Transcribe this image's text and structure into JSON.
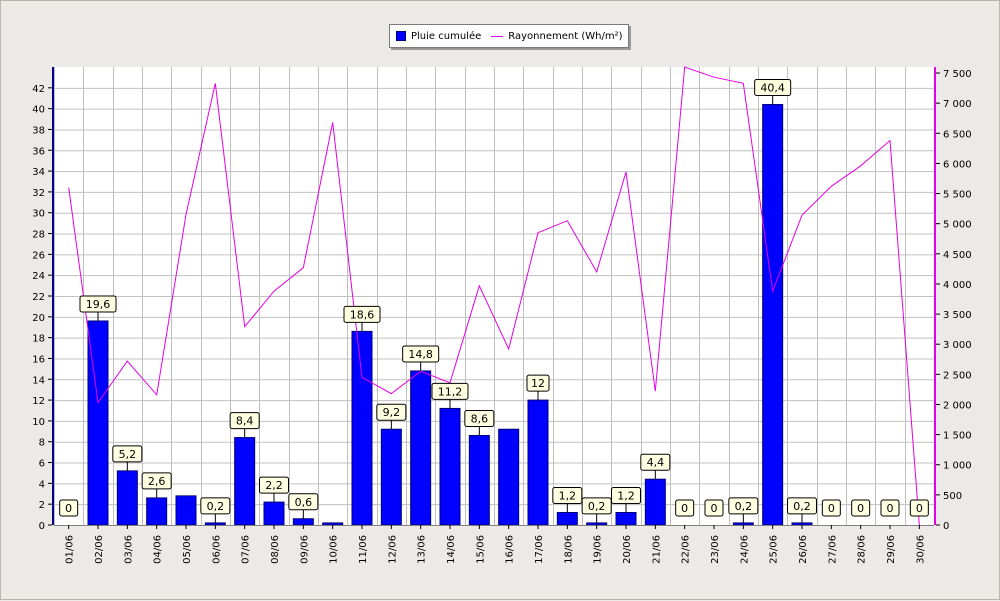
{
  "chart_data": {
    "type": "bar",
    "categories": [
      "01/06",
      "02/06",
      "03/06",
      "04/06",
      "05/06",
      "06/06",
      "07/06",
      "08/06",
      "09/06",
      "10/06",
      "11/06",
      "12/06",
      "13/06",
      "14/06",
      "15/06",
      "16/06",
      "17/06",
      "18/06",
      "19/06",
      "20/06",
      "21/06",
      "22/06",
      "23/06",
      "24/06",
      "25/06",
      "26/06",
      "27/06",
      "28/06",
      "29/06",
      "30/06"
    ],
    "series": [
      {
        "name": "Pluie cumulée",
        "type": "bar",
        "axis": "left",
        "color": "#0000ff",
        "values": [
          0,
          19.6,
          5.2,
          2.6,
          2.8,
          0.2,
          8.4,
          2.2,
          0.6,
          0.2,
          18.6,
          9.2,
          14.8,
          11.2,
          8.6,
          9.2,
          12,
          1.2,
          0.2,
          1.2,
          4.4,
          0,
          0,
          0.2,
          40.4,
          0.2,
          0,
          0,
          0,
          0
        ],
        "labels": [
          "0",
          "19,6",
          "5,2",
          "2,6",
          null,
          "0,2",
          "8,4",
          "2,2",
          "0,6",
          null,
          "18,6",
          "9,2",
          "14,8",
          "11,2",
          "8,6",
          null,
          "12",
          "1,2",
          "0,2",
          "1,2",
          "4,4",
          "0",
          "0",
          "0,2",
          "40,4",
          "0,2",
          "0",
          "0",
          "0",
          "0"
        ]
      },
      {
        "name": "Rayonnement (Wh/m²)",
        "type": "line",
        "axis": "right",
        "color": "#e600e6",
        "values": [
          5600,
          2030,
          2720,
          2160,
          5150,
          7330,
          3290,
          3880,
          4270,
          6680,
          2450,
          2180,
          2550,
          2360,
          3970,
          2920,
          4850,
          5050,
          4200,
          5860,
          2220,
          7600,
          7430,
          7330,
          3880,
          5140,
          5620,
          5960,
          6380,
          0
        ]
      }
    ],
    "yaxis_left": {
      "min": 0,
      "max": 44,
      "ticks": [
        0,
        2,
        4,
        6,
        8,
        10,
        12,
        14,
        16,
        18,
        20,
        22,
        24,
        26,
        28,
        30,
        32,
        34,
        36,
        38,
        40,
        42
      ]
    },
    "yaxis_right": {
      "min": 0,
      "max": 7600,
      "ticks": [
        0,
        500,
        1000,
        1500,
        2000,
        2500,
        3000,
        3500,
        4000,
        4500,
        5000,
        5500,
        6000,
        6500,
        7000,
        7500
      ],
      "tick_labels": [
        "0",
        "500",
        "1 000",
        "1 500",
        "2 000",
        "2 500",
        "3 000",
        "3 500",
        "4 000",
        "4 500",
        "5 000",
        "5 500",
        "6 000",
        "6 500",
        "7 000",
        "7 500"
      ]
    },
    "grid": true,
    "legend_position": "top-center",
    "title": "",
    "xlabel": "",
    "ylabel": ""
  }
}
